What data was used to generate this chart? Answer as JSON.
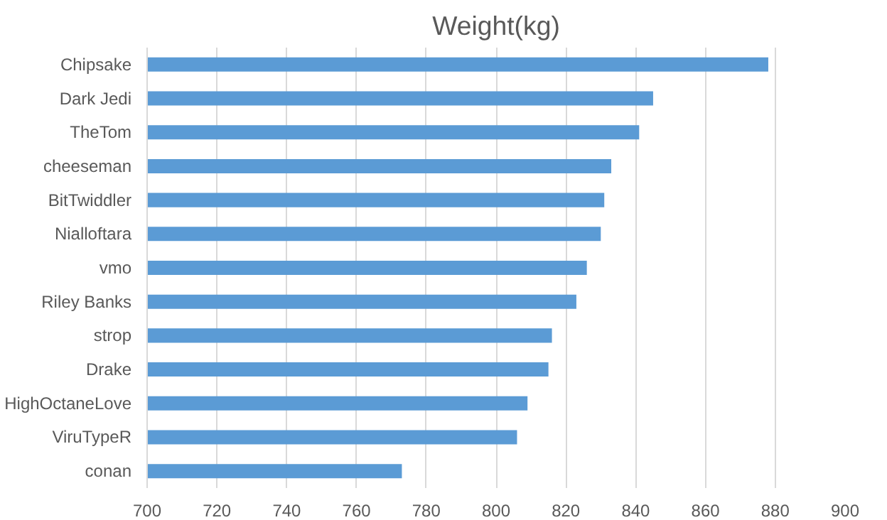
{
  "chart_data": {
    "type": "bar",
    "orientation": "horizontal",
    "title": "Weight(kg)",
    "categories": [
      "Chipsake",
      "Dark Jedi",
      "TheTom",
      "cheeseman",
      "BitTwiddler",
      "Nialloftara",
      "vmo",
      "Riley Banks",
      "strop",
      "Drake",
      "HighOctaneLove",
      "ViruTypeR",
      "conan"
    ],
    "values": [
      878,
      845,
      841,
      833,
      831,
      830,
      826,
      823,
      816,
      815,
      809,
      806,
      773
    ],
    "color": "#5b9bd5",
    "xlim": [
      700,
      900
    ],
    "xticks": [
      700,
      720,
      740,
      760,
      780,
      800,
      820,
      840,
      860,
      880,
      900
    ],
    "grid": "x"
  }
}
